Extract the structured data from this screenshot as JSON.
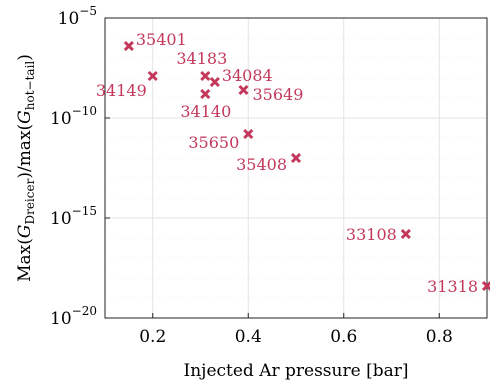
{
  "chart_data": {
    "type": "scatter",
    "xlabel": "Injected Ar pressure [bar]",
    "ylabel": "Max(G_Dreicer)/max(G_hot-tail)",
    "xlim": [
      0.1,
      0.9
    ],
    "ylim_log10": [
      -20,
      -5
    ],
    "y_scale": "log",
    "grid": true,
    "marker": "x",
    "color": "#c3385a",
    "x_ticks": [
      "0.2",
      "0.4",
      "0.6",
      "0.8"
    ],
    "y_ticks": [
      {
        "exponent": -5,
        "text": "10"
      },
      {
        "exponent": -10,
        "text": "10"
      },
      {
        "exponent": -15,
        "text": "10"
      },
      {
        "exponent": -20,
        "text": "10"
      }
    ],
    "points": [
      {
        "label": "35401",
        "x": 0.15,
        "y_log10": -6.4
      },
      {
        "label": "34149",
        "x": 0.2,
        "y_log10": -7.9
      },
      {
        "label": "34183",
        "x": 0.31,
        "y_log10": -7.9
      },
      {
        "label": "34084",
        "x": 0.33,
        "y_log10": -8.2
      },
      {
        "label": "34140",
        "x": 0.31,
        "y_log10": -8.8
      },
      {
        "label": "35649",
        "x": 0.39,
        "y_log10": -8.6
      },
      {
        "label": "35650",
        "x": 0.4,
        "y_log10": -10.8
      },
      {
        "label": "35408",
        "x": 0.5,
        "y_log10": -12.0
      },
      {
        "label": "33108",
        "x": 0.73,
        "y_log10": -15.8
      },
      {
        "label": "31318",
        "x": 0.9,
        "y_log10": -18.4
      }
    ]
  }
}
